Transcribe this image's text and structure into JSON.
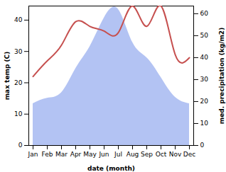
{
  "chart_data": {
    "type": "line",
    "x_label": "date (month)",
    "y_label": "max temp (C)",
    "y2_label": "med. precipitation (kg/m2)",
    "categories": [
      "Jan",
      "Feb",
      "Mar",
      "Apr",
      "May",
      "Jun",
      "Jul",
      "Aug",
      "Sep",
      "Oct",
      "Nov",
      "Dec"
    ],
    "series": [
      {
        "name": "med. precipitation",
        "type": "area",
        "axis": "y2",
        "color": "#b3c3f3",
        "values": [
          19,
          21.5,
          24,
          35,
          45,
          58,
          62,
          47,
          40,
          31,
          22,
          19
        ]
      },
      {
        "name": "max temp",
        "type": "line",
        "axis": "y",
        "color": "#c6504f",
        "values": [
          22,
          27,
          32,
          39.5,
          38,
          36.5,
          36,
          44.5,
          38,
          44.5,
          29,
          28
        ]
      }
    ],
    "ylim": [
      0,
      44.5
    ],
    "yticks": [
      0,
      10,
      20,
      30,
      40
    ],
    "y2lim": [
      0,
      63.5
    ],
    "y2ticks": [
      0,
      10,
      20,
      30,
      40,
      50,
      60
    ],
    "grid": false
  }
}
